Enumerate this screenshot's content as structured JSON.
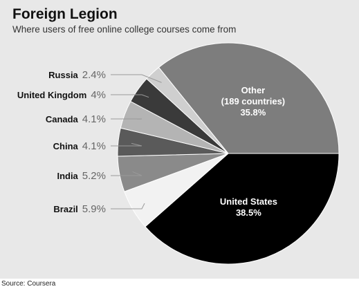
{
  "title": "Foreign Legion",
  "subtitle": "Where users of free online college courses come from",
  "source": "Source: Coursera",
  "chart_data": {
    "type": "pie",
    "title": "Foreign Legion",
    "subtitle": "Where users of free online college courses come from",
    "slices": [
      {
        "label": "United States",
        "value": 38.5,
        "display": "38.5%",
        "color": "#000000",
        "label_lines": [
          "United States",
          "38.5%"
        ]
      },
      {
        "label": "Brazil",
        "value": 5.9,
        "display": "5.9%",
        "color": "#f2f2f2"
      },
      {
        "label": "India",
        "value": 5.2,
        "display": "5.2%",
        "color": "#8a8a8a"
      },
      {
        "label": "China",
        "value": 4.1,
        "display": "4.1%",
        "color": "#5a5a5a"
      },
      {
        "label": "Canada",
        "value": 4.1,
        "display": "4.1%",
        "color": "#b4b4b4"
      },
      {
        "label": "United Kingdom",
        "value": 4.0,
        "display": "4%",
        "color": "#3a3a3a"
      },
      {
        "label": "Russia",
        "value": 2.4,
        "display": "2.4%",
        "color": "#cfcfcf"
      },
      {
        "label": "Other",
        "value": 35.8,
        "display": "35.8%",
        "color": "#7d7d7d",
        "label_lines": [
          "Other",
          "(189 countries)",
          "35.8%"
        ]
      }
    ]
  }
}
